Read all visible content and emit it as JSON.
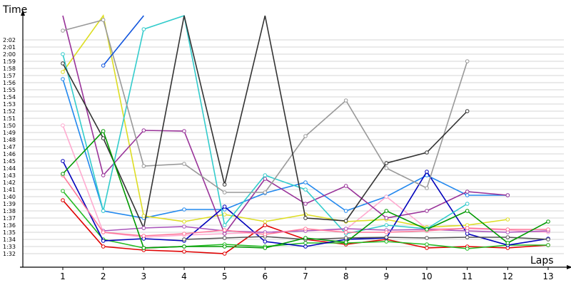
{
  "chart_data": {
    "type": "line",
    "ylabel": "Time",
    "xlabel": "Laps",
    "x": [
      1,
      2,
      3,
      4,
      5,
      6,
      7,
      8,
      9,
      10,
      11,
      12,
      13
    ],
    "xlim": [
      0,
      13.3
    ],
    "ylim": [
      90.5,
      128
    ],
    "y_tick_labels": [
      "1:32",
      "1:33",
      "1:34",
      "1:35",
      "1:36",
      "1:37",
      "1:38",
      "1:39",
      "1:40",
      "1:41",
      "1:42",
      "1:43",
      "1:44",
      "1:45",
      "1:46",
      "1:47",
      "1:48",
      "1:49",
      "1:50",
      "1:51",
      "1:52",
      "1:53",
      "1:54",
      "1:55",
      "1:56",
      "1:57",
      "1:58",
      "1:59",
      "2:00",
      "2:01",
      "2:02"
    ],
    "y_tick_values": [
      92,
      93,
      94,
      95,
      96,
      97,
      98,
      99,
      100,
      101,
      102,
      103,
      104,
      105,
      106,
      107,
      108,
      109,
      110,
      111,
      112,
      113,
      114,
      115,
      116,
      117,
      118,
      119,
      120,
      121,
      122
    ],
    "grid": true,
    "legend": "none",
    "series": [
      {
        "color": "#e00000",
        "values": [
          99.5,
          93,
          92.5,
          92.3,
          92,
          96,
          94,
          93.3,
          94,
          92.8,
          93,
          92.8,
          93.2
        ]
      },
      {
        "color": "#22bb22",
        "values": [
          100.8,
          94,
          92.8,
          93,
          93.3,
          93,
          93.5,
          93.5,
          93.7,
          93.3,
          92.7,
          93.2,
          93.2
        ]
      },
      {
        "color": "#2288ee",
        "values": [
          116.5,
          98,
          97,
          98.2,
          98.2,
          100.5,
          102,
          98,
          100,
          103,
          100.2,
          100.2,
          null
        ]
      },
      {
        "color": "#ffaad0",
        "values": [
          110,
          95,
          94.3,
          94.6,
          94.8,
          95,
          95.2,
          95.4,
          100,
          95.5,
          95.5,
          95.3,
          95
        ]
      },
      {
        "color": "#dddd22",
        "values": [
          117.5,
          128,
          97.3,
          96.5,
          97.5,
          96.5,
          97.5,
          96.5,
          96.8,
          95.7,
          96,
          96.8,
          null
        ]
      },
      {
        "color": "#993399",
        "values": [
          128,
          103,
          109.3,
          109.2,
          94.8,
          102.5,
          99,
          101.5,
          97,
          98,
          100.7,
          100.2,
          null
        ]
      },
      {
        "color": "#0000bb",
        "values": [
          105,
          93.8,
          94.1,
          93.8,
          98.6,
          93.7,
          93,
          94,
          94.2,
          103.5,
          94.8,
          93.2,
          94.1
        ]
      },
      {
        "color": "#33cccc",
        "values": [
          120,
          98,
          123.5,
          128,
          96,
          103,
          101,
          94.8,
          96,
          95.5,
          99,
          null,
          null
        ]
      },
      {
        "color": "#999999",
        "values": [
          123.3,
          124.8,
          104.3,
          104.6,
          100.6,
          100.6,
          108.5,
          113.5,
          104,
          101.2,
          119,
          null,
          null
        ]
      },
      {
        "color": "#333333",
        "values": [
          118.7,
          108.2,
          95.6,
          128,
          101.7,
          128,
          97,
          96.6,
          104.7,
          106.2,
          112,
          null,
          null
        ]
      },
      {
        "color": "#555555",
        "values": [
          null,
          null,
          null,
          94,
          94.2,
          94.4,
          94,
          94.2,
          94.3,
          94.2,
          94.3,
          94.3,
          94
        ]
      },
      {
        "color": "#aa55bb",
        "values": [
          null,
          95.2,
          95.6,
          95.8,
          95.2,
          95,
          95.2,
          95.5,
          95.3,
          95.4,
          95.2,
          95,
          95.2
        ]
      },
      {
        "color": "#ff7799",
        "values": [
          103,
          95,
          94.5,
          94.8,
          95.3,
          94.7,
          95.5,
          95,
          95,
          95.2,
          95.6,
          95.4,
          95.4
        ]
      },
      {
        "color": "#009900",
        "values": [
          103.2,
          109.2,
          92.8,
          93,
          93,
          92.8,
          94.2,
          93.6,
          98,
          95.4,
          98,
          93.5,
          96.5
        ]
      },
      {
        "color": "#1155dd",
        "values": [
          null,
          118.4,
          128,
          null,
          null,
          null,
          null,
          null,
          null,
          null,
          null,
          null,
          null
        ]
      }
    ]
  }
}
